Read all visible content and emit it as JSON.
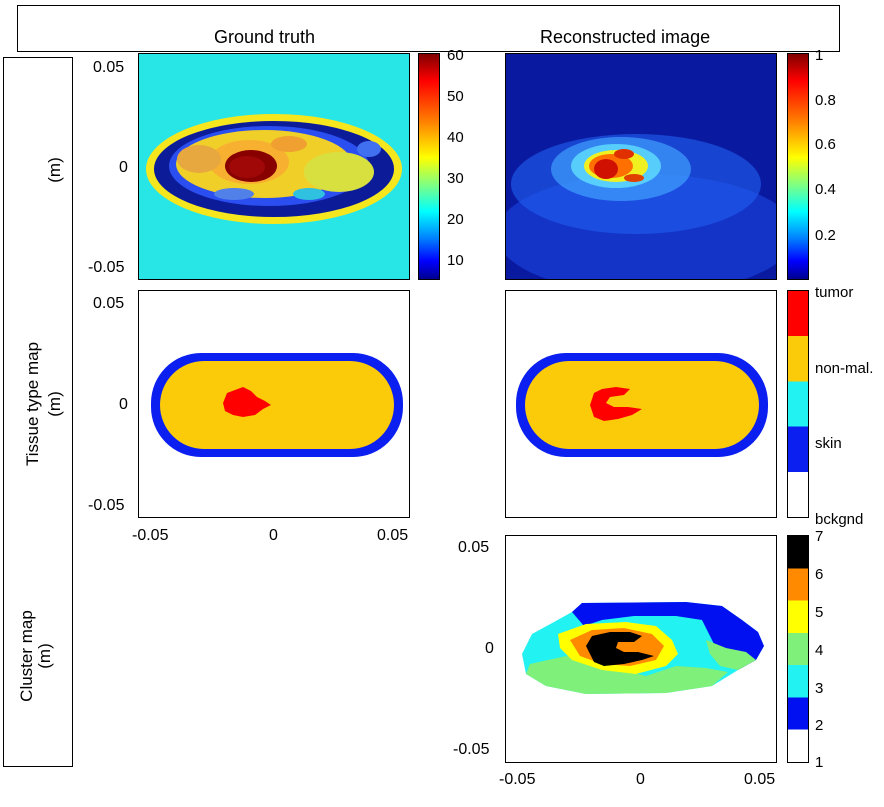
{
  "headers": {
    "ground_truth": "Ground truth",
    "reconstructed": "Reconstructed image"
  },
  "row_labels": {
    "row1": "(m)",
    "row2_title": "Tissue type map",
    "row2_unit": "(m)",
    "row3_title": "Cluster map",
    "row3_unit": "(m)"
  },
  "axis_ticks": {
    "y": [
      "0.05",
      "0",
      "-0.05"
    ],
    "x": [
      "-0.05",
      "0",
      "0.05"
    ]
  },
  "colorbar1": [
    "60",
    "50",
    "40",
    "30",
    "20",
    "10"
  ],
  "colorbar2": [
    "1",
    "0.8",
    "0.6",
    "0.4",
    "0.2"
  ],
  "tissue_legend": [
    "tumor",
    "non-mal.",
    "skin",
    "bckgnd"
  ],
  "tissue_colors": {
    "tumor": "#ff0000",
    "non_mal": "#fbcb0a",
    "skin": "#0a1ff0",
    "bckgnd": "#ffffff"
  },
  "cluster_legend": [
    "7",
    "6",
    "5",
    "4",
    "3",
    "2",
    "1"
  ],
  "cluster_colors": [
    "#000000",
    "#ff8a00",
    "#ffff00",
    "#7ff07a",
    "#22f2f2",
    "#0010f0",
    "#ffffff"
  ]
}
